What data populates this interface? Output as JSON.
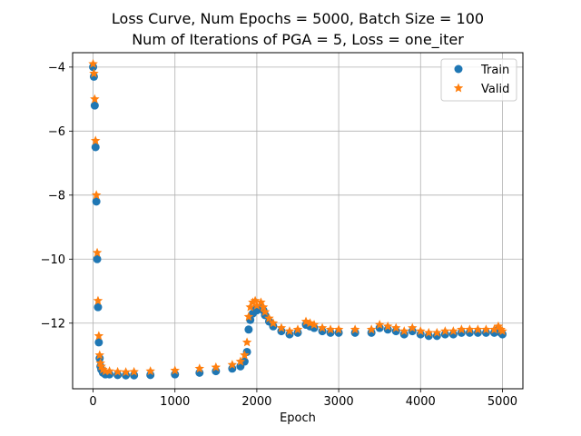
{
  "chart_data": {
    "type": "scatter",
    "title_lines": [
      "Loss Curve, Num Epochs = 5000, Batch Size = 100",
      "Num of Iterations of PGA = 5, Loss = one_iter"
    ],
    "xlabel": "Epoch",
    "ylabel": "",
    "xlim": [
      -250,
      5250
    ],
    "ylim": [
      -14.05,
      -3.55
    ],
    "xticks": [
      0,
      1000,
      2000,
      3000,
      4000,
      5000
    ],
    "xtick_labels": [
      "0",
      "1000",
      "2000",
      "3000",
      "4000",
      "5000"
    ],
    "yticks": [
      -4,
      -6,
      -8,
      -10,
      -12
    ],
    "ytick_labels": [
      "−4",
      "−6",
      "−8",
      "−10",
      "−12"
    ],
    "grid": true,
    "legend_position": "top-right",
    "series": [
      {
        "name": "Train",
        "marker": "circle",
        "color": "#1f77b4",
        "x": [
          0,
          10,
          20,
          30,
          40,
          50,
          60,
          70,
          80,
          90,
          100,
          120,
          150,
          200,
          300,
          400,
          500,
          700,
          1000,
          1300,
          1500,
          1700,
          1800,
          1850,
          1880,
          1900,
          1920,
          1950,
          1980,
          2000,
          2050,
          2080,
          2100,
          2150,
          2200,
          2300,
          2400,
          2500,
          2600,
          2650,
          2700,
          2800,
          2900,
          3000,
          3200,
          3400,
          3500,
          3600,
          3700,
          3800,
          3900,
          4000,
          4100,
          4200,
          4300,
          4400,
          4500,
          4600,
          4700,
          4800,
          4900,
          4950,
          4980,
          5000
        ],
        "y": [
          -4.0,
          -4.3,
          -5.2,
          -6.5,
          -8.2,
          -10.0,
          -11.5,
          -12.6,
          -13.1,
          -13.35,
          -13.45,
          -13.55,
          -13.6,
          -13.6,
          -13.62,
          -13.63,
          -13.63,
          -13.62,
          -13.6,
          -13.55,
          -13.5,
          -13.42,
          -13.35,
          -13.2,
          -12.9,
          -12.2,
          -11.9,
          -11.7,
          -11.55,
          -11.6,
          -11.5,
          -11.6,
          -11.75,
          -11.95,
          -12.1,
          -12.25,
          -12.35,
          -12.3,
          -12.05,
          -12.1,
          -12.15,
          -12.25,
          -12.3,
          -12.3,
          -12.3,
          -12.3,
          -12.15,
          -12.2,
          -12.25,
          -12.35,
          -12.25,
          -12.35,
          -12.4,
          -12.4,
          -12.35,
          -12.35,
          -12.3,
          -12.3,
          -12.3,
          -12.3,
          -12.3,
          -12.2,
          -12.3,
          -12.35
        ]
      },
      {
        "name": "Valid",
        "marker": "star",
        "color": "#ff7f0e",
        "x": [
          0,
          10,
          20,
          30,
          40,
          50,
          60,
          70,
          80,
          90,
          100,
          120,
          150,
          200,
          300,
          400,
          500,
          700,
          1000,
          1300,
          1500,
          1700,
          1800,
          1850,
          1880,
          1900,
          1920,
          1950,
          1980,
          2000,
          2050,
          2080,
          2100,
          2150,
          2200,
          2300,
          2400,
          2500,
          2600,
          2650,
          2700,
          2800,
          2900,
          3000,
          3200,
          3400,
          3500,
          3600,
          3700,
          3800,
          3900,
          4000,
          4100,
          4200,
          4300,
          4400,
          4500,
          4600,
          4700,
          4800,
          4900,
          4950,
          4980,
          5000
        ],
        "y": [
          -3.9,
          -4.2,
          -5.0,
          -6.3,
          -8.0,
          -9.8,
          -11.3,
          -12.4,
          -13.0,
          -13.25,
          -13.35,
          -13.45,
          -13.5,
          -13.5,
          -13.52,
          -13.53,
          -13.52,
          -13.5,
          -13.48,
          -13.42,
          -13.38,
          -13.3,
          -13.2,
          -13.0,
          -12.6,
          -11.8,
          -11.5,
          -11.35,
          -11.3,
          -11.45,
          -11.35,
          -11.5,
          -11.65,
          -11.85,
          -12.0,
          -12.15,
          -12.25,
          -12.2,
          -11.95,
          -12.0,
          -12.05,
          -12.15,
          -12.2,
          -12.2,
          -12.2,
          -12.2,
          -12.05,
          -12.1,
          -12.15,
          -12.25,
          -12.15,
          -12.25,
          -12.3,
          -12.3,
          -12.25,
          -12.25,
          -12.2,
          -12.2,
          -12.2,
          -12.2,
          -12.2,
          -12.1,
          -12.2,
          -12.25
        ]
      }
    ]
  }
}
